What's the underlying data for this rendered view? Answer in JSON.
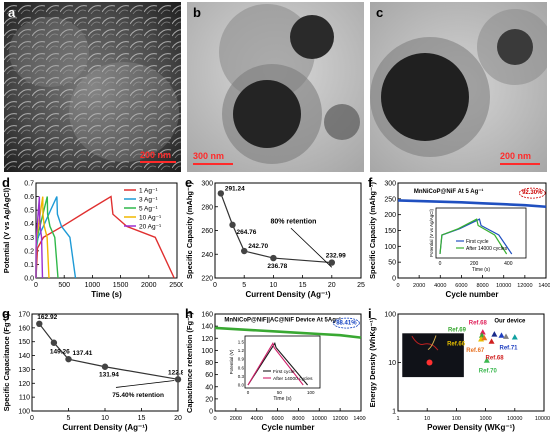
{
  "figure": {
    "panels": [
      {
        "label": "a",
        "type": "sem",
        "scale_bar": "200 nm"
      },
      {
        "label": "b",
        "type": "tem",
        "scale_bar": "300 nm"
      },
      {
        "label": "c",
        "type": "tem",
        "scale_bar": "200 nm"
      }
    ]
  },
  "chart_data": [
    {
      "panel": "d",
      "type": "line",
      "xlabel": "Time (s)",
      "ylabel": "Potential (V vs Ag/AgCl)",
      "xlim": [
        0,
        2500
      ],
      "ylim": [
        0,
        0.7
      ],
      "xticks": [
        "0",
        "500",
        "1000",
        "1500",
        "2000",
        "2500"
      ],
      "yticks": [
        "0.0",
        "0.1",
        "0.2",
        "0.3",
        "0.4",
        "0.5",
        "0.6",
        "0.7"
      ],
      "series": [
        {
          "name": "1 Ag⁻¹",
          "color": "#e03030",
          "charge_end": 1330,
          "discharge_end": 2450
        },
        {
          "name": "3 Ag⁻¹",
          "color": "#1e9ad6",
          "charge_end": 370,
          "discharge_end": 700
        },
        {
          "name": "5 Ag⁻¹",
          "color": "#2fb84a",
          "charge_end": 200,
          "discharge_end": 390
        },
        {
          "name": "10 Ag⁻¹",
          "color": "#f0b800",
          "charge_end": 120,
          "discharge_end": 230
        },
        {
          "name": "20 Ag⁻¹",
          "color": "#9b30d0",
          "charge_end": 60,
          "discharge_end": 115
        }
      ]
    },
    {
      "panel": "e",
      "type": "line",
      "xlabel": "Current Density (Ag⁻¹)",
      "ylabel": "Specific Capacity (mAhg⁻¹)",
      "xlim": [
        0,
        25
      ],
      "ylim": [
        220,
        300
      ],
      "xticks": [
        "0",
        "5",
        "10",
        "15",
        "20",
        "25"
      ],
      "yticks": [
        "220",
        "240",
        "260",
        "280",
        "300"
      ],
      "x": [
        1,
        3,
        5,
        10,
        20
      ],
      "values": [
        291.24,
        264.76,
        242.7,
        236.78,
        232.99
      ],
      "labels": [
        "291.24",
        "264.76",
        "242.70",
        "236.78",
        "232.99"
      ],
      "annotation": "80% retention"
    },
    {
      "panel": "f",
      "type": "line",
      "title": "MnNiCoP@NiF At 5 Ag⁻¹",
      "xlabel": "Cycle number",
      "ylabel": "Specific Capacity (mAhg⁻¹)",
      "xlim": [
        0,
        14000
      ],
      "ylim": [
        0,
        300
      ],
      "xticks": [
        "0",
        "2000",
        "4000",
        "6000",
        "8000",
        "10000",
        "12000",
        "14000"
      ],
      "yticks": [
        "0",
        "50",
        "100",
        "150",
        "200",
        "250",
        "300"
      ],
      "x": [
        0,
        2000,
        4000,
        6000,
        8000,
        10000,
        12000,
        14000
      ],
      "values": [
        245,
        243,
        241,
        239,
        236,
        233,
        230,
        225
      ],
      "annotation": "92.30%",
      "inset": {
        "xlabel": "Time (s)",
        "ylabel": "Potential (V vs Ag/AgCl)",
        "xticks": [
          "0",
          "200",
          "400"
        ],
        "legend": [
          "First cycle",
          "After 14000 cycles"
        ]
      }
    },
    {
      "panel": "g",
      "type": "line",
      "xlabel": "Current Density (Ag⁻¹)",
      "ylabel": "Specific Capacitance (Fg⁻¹)",
      "xlim": [
        0,
        20
      ],
      "ylim": [
        100,
        170
      ],
      "xticks": [
        "0",
        "5",
        "10",
        "15",
        "20"
      ],
      "yticks": [
        "100",
        "110",
        "120",
        "130",
        "140",
        "150",
        "160",
        "170"
      ],
      "x": [
        1,
        3,
        5,
        10,
        20
      ],
      "values": [
        162.92,
        149.26,
        137.41,
        131.94,
        122.85
      ],
      "labels": [
        "162.92",
        "149.26",
        "137.41",
        "131.94",
        "122.85"
      ],
      "annotation": "75.40% retention"
    },
    {
      "panel": "h",
      "type": "line",
      "title": "MnNiCoP@NiF||AC@NiF Device At 5Ag⁻¹",
      "xlabel": "Cycle number",
      "ylabel": "Capacitance retention (Fg⁻¹)",
      "xlim": [
        0,
        14000
      ],
      "ylim": [
        0,
        160
      ],
      "xticks": [
        "0",
        "2000",
        "4000",
        "6000",
        "8000",
        "10000",
        "12000",
        "14000"
      ],
      "yticks": [
        "0",
        "20",
        "40",
        "60",
        "80",
        "100",
        "120",
        "140",
        "160"
      ],
      "x": [
        0,
        2000,
        4000,
        6000,
        8000,
        10000,
        12000,
        14000
      ],
      "values": [
        137,
        135,
        133,
        131,
        129,
        127,
        125,
        121
      ],
      "annotation": "88.41%",
      "inset": {
        "xlabel": "Time (s)",
        "ylabel": "Potential (V)",
        "xticks": [
          "0",
          "50",
          "100"
        ],
        "yticks": [
          "0.0",
          "0.3",
          "0.6",
          "0.9",
          "1.2",
          "1.5"
        ],
        "legend": [
          "First cycle",
          "After 14000 cycles"
        ]
      }
    },
    {
      "panel": "i",
      "type": "scatter",
      "xlabel": "Power Density (WKg⁻¹)",
      "ylabel": "Energy Density (WhKg⁻¹)",
      "xscale": "log",
      "yscale": "log",
      "xlim": [
        1,
        100000
      ],
      "ylim": [
        1,
        100
      ],
      "xticks": [
        "1",
        "10",
        "100",
        "1000",
        "10000",
        "100000"
      ],
      "yticks": [
        "1",
        "10",
        "100"
      ],
      "points": [
        {
          "label": "Our device",
          "x": 2000,
          "y": 38,
          "color": "#1a2a8a"
        },
        {
          "label": "Ref.68",
          "x": 800,
          "y": 42,
          "color": "#e0205a"
        },
        {
          "label": "Ref.69",
          "x": 750,
          "y": 36,
          "color": "#39a832"
        },
        {
          "label": "Ref.66",
          "x": 700,
          "y": 30,
          "color": "#e8c000"
        },
        {
          "label": "Ref.67",
          "x": 900,
          "y": 32,
          "color": "#e87020"
        },
        {
          "label": "Ref.71",
          "x": 3500,
          "y": 36,
          "color": "#2040c0"
        },
        {
          "label": "Ref.68",
          "x": 1600,
          "y": 27,
          "color": "#d02020"
        },
        {
          "label": "Ref.70",
          "x": 1100,
          "y": 11,
          "color": "#3cb850"
        },
        {
          "label": "",
          "x": 5000,
          "y": 34,
          "color": "#808080"
        },
        {
          "label": "",
          "x": 10000,
          "y": 33,
          "color": "#10a0a0"
        }
      ]
    }
  ]
}
